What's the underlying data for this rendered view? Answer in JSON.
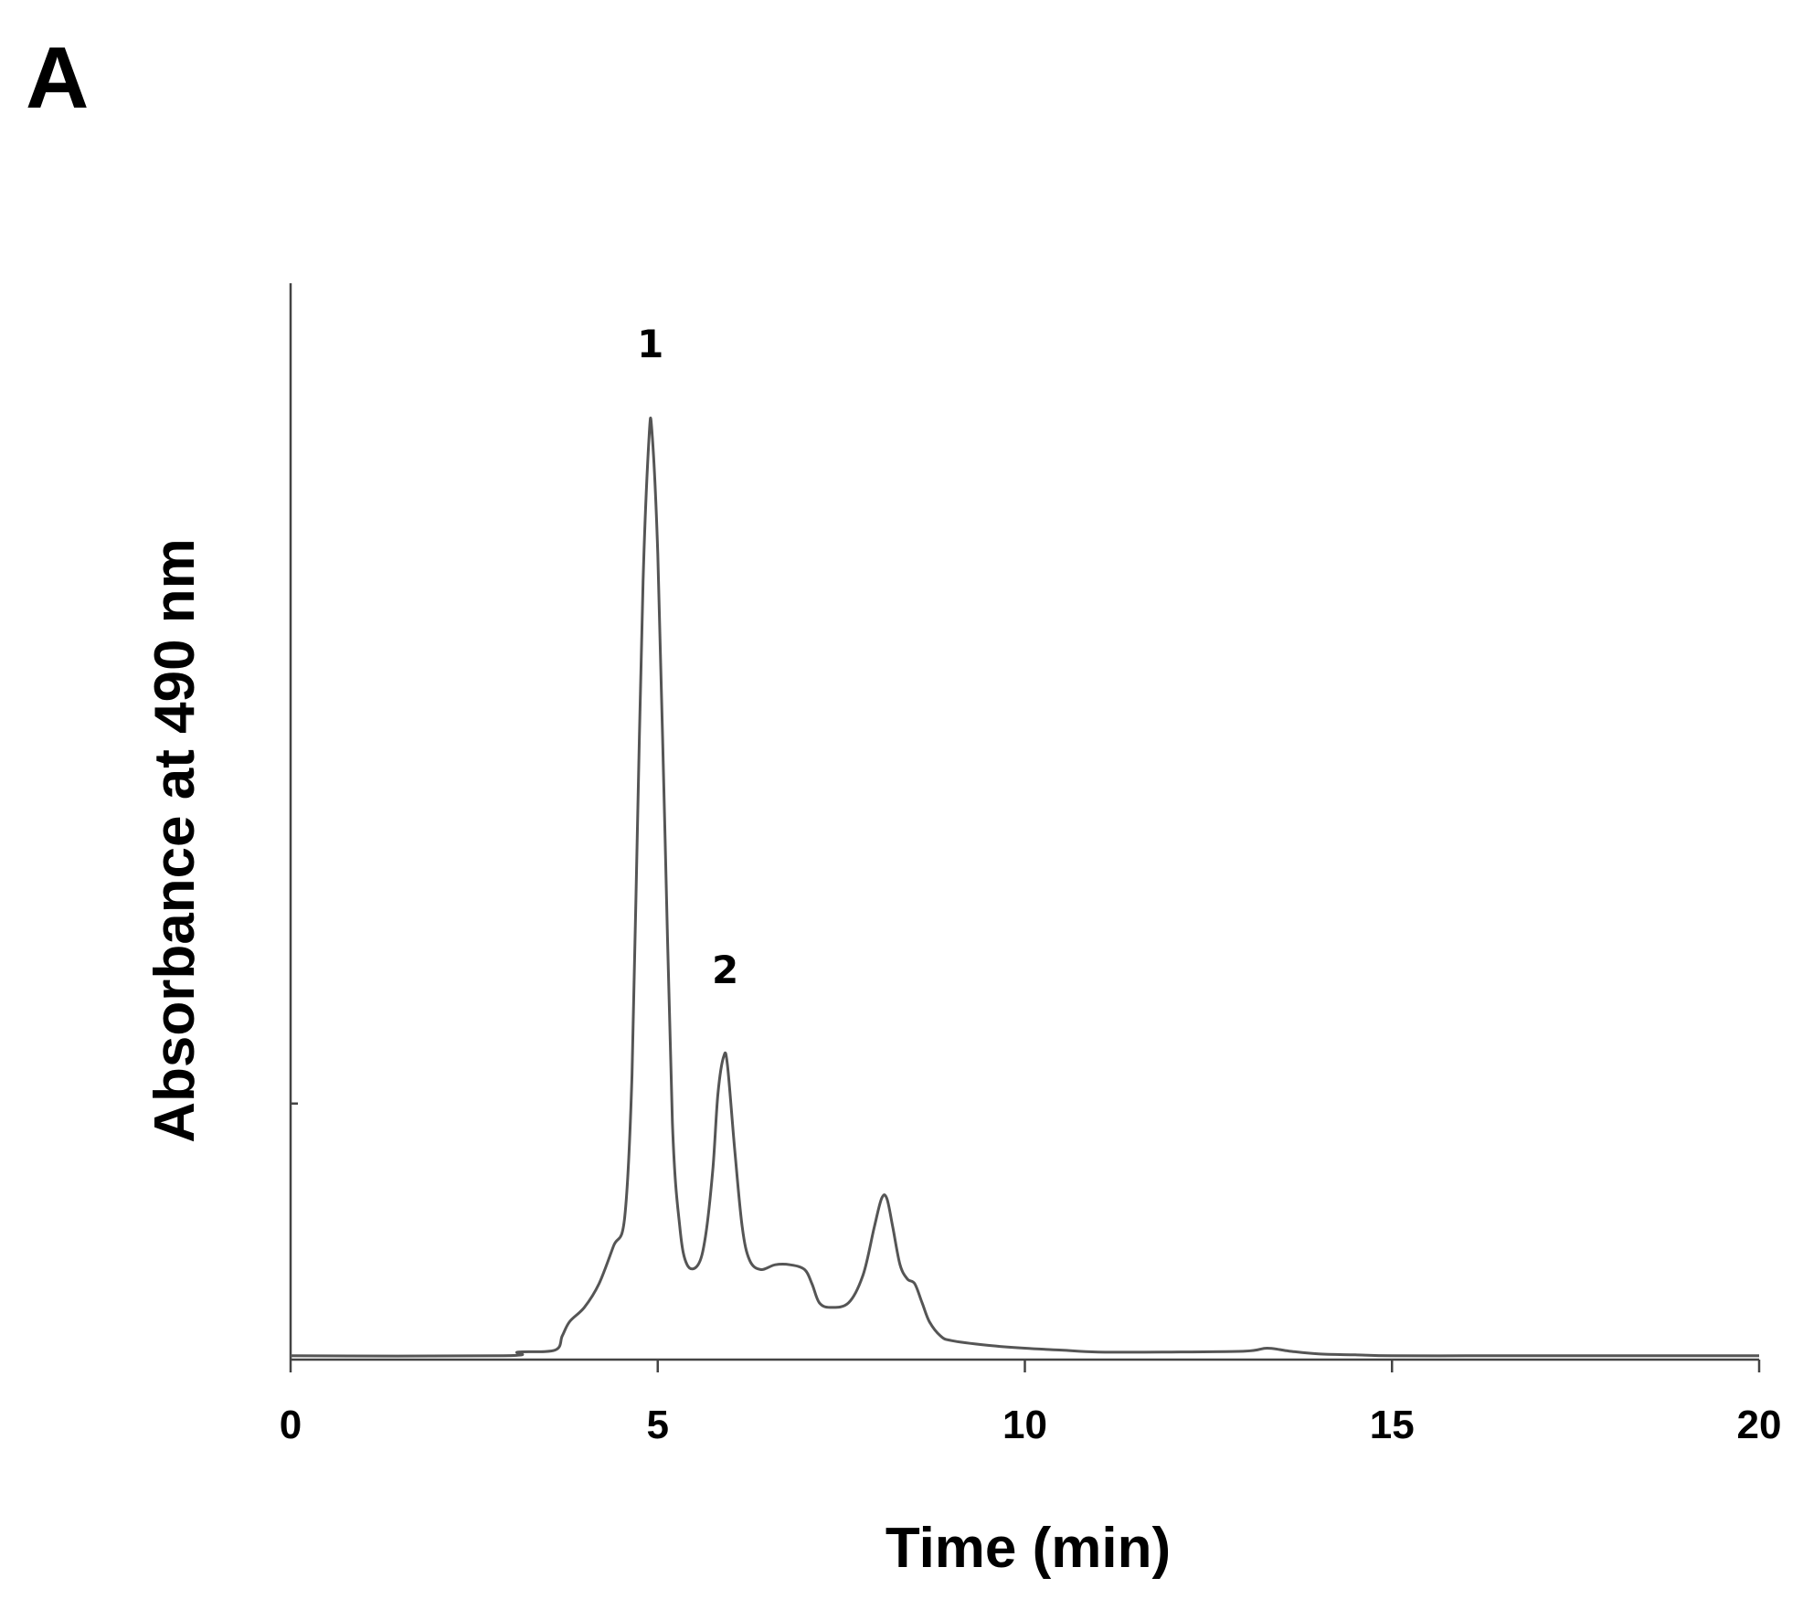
{
  "panel_label": "A",
  "chart_data": {
    "type": "line",
    "title": "",
    "xlabel": "Time (min)",
    "ylabel": "Absorbance at 490 nm",
    "xlim": [
      0,
      20
    ],
    "ylim": [
      0,
      1
    ],
    "xticks": [
      0,
      5,
      10,
      15,
      20
    ],
    "xtick_labels": [
      "0",
      "5",
      "10",
      "15",
      "20"
    ],
    "yticks_unlabeled": [
      0.27
    ],
    "grid": false,
    "legend": "none",
    "line_color": "#555555",
    "series": [
      {
        "x": [
          0,
          2.9,
          3.1,
          3.6,
          3.7,
          3.8,
          4.0,
          4.2,
          4.4,
          4.55,
          4.65,
          4.72,
          4.8,
          4.88,
          4.92,
          5.0,
          5.1,
          5.2,
          5.3,
          5.4,
          5.55,
          5.65,
          5.75,
          5.82,
          5.9,
          5.95,
          6.05,
          6.15,
          6.25,
          6.4,
          6.6,
          6.8,
          7.0,
          7.1,
          7.2,
          7.35,
          7.6,
          7.8,
          7.95,
          8.05,
          8.12,
          8.2,
          8.3,
          8.4,
          8.5,
          8.6,
          8.7,
          8.85,
          9.0,
          9.5,
          10.0,
          10.5,
          11.0,
          12.0,
          13.0,
          13.3,
          13.6,
          14.0,
          14.5,
          15.0,
          16.0,
          17.0,
          18.0,
          19.0,
          20.0
        ],
        "y": [
          0.004,
          0.004,
          0.008,
          0.01,
          0.025,
          0.04,
          0.055,
          0.08,
          0.12,
          0.15,
          0.3,
          0.55,
          0.82,
          0.97,
          0.98,
          0.85,
          0.55,
          0.25,
          0.14,
          0.1,
          0.1,
          0.13,
          0.2,
          0.28,
          0.32,
          0.31,
          0.22,
          0.14,
          0.105,
          0.095,
          0.1,
          0.1,
          0.095,
          0.08,
          0.06,
          0.055,
          0.06,
          0.09,
          0.14,
          0.17,
          0.17,
          0.14,
          0.1,
          0.085,
          0.08,
          0.06,
          0.04,
          0.025,
          0.02,
          0.015,
          0.012,
          0.01,
          0.008,
          0.008,
          0.009,
          0.012,
          0.009,
          0.006,
          0.005,
          0.004,
          0.004,
          0.004,
          0.004,
          0.004,
          0.004
        ]
      }
    ],
    "annotations": [
      {
        "text": "1",
        "x": 4.9,
        "y": 0.98
      },
      {
        "text": "2",
        "x": 5.92,
        "y": 0.32
      }
    ]
  }
}
